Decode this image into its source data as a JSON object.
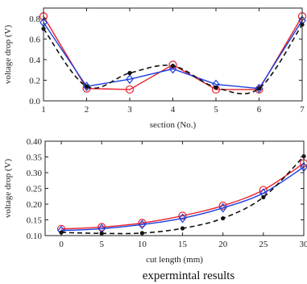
{
  "chart_data": [
    {
      "type": "line",
      "xlabel": "section (No.)",
      "ylabel": "voltage drop (V)",
      "xlim": [
        1,
        7
      ],
      "ylim": [
        0,
        0.9
      ],
      "xticks": [
        1,
        2,
        3,
        4,
        5,
        6,
        7
      ],
      "yticks": [
        "0.0",
        "0.2",
        "0.4",
        "0.6",
        "0.8"
      ],
      "ytick_values": [
        0,
        0.2,
        0.4,
        0.6,
        0.8
      ],
      "grid": false,
      "series": [
        {
          "marker": "circle-open",
          "line": "solid",
          "color": "#e8202a",
          "x": [
            1,
            2,
            3,
            4,
            5,
            6,
            7
          ],
          "y": [
            0.82,
            0.12,
            0.11,
            0.35,
            0.11,
            0.11,
            0.82
          ]
        },
        {
          "marker": "diamond-open",
          "line": "solid",
          "color": "#1a3fe0",
          "x": [
            1,
            2,
            3,
            4,
            5,
            6,
            7
          ],
          "y": [
            0.76,
            0.14,
            0.21,
            0.31,
            0.16,
            0.12,
            0.78
          ]
        },
        {
          "marker": "dot",
          "line": "dashed",
          "color": "#111111",
          "x": [
            1,
            2,
            3,
            4,
            5,
            6,
            7
          ],
          "y": [
            0.7,
            0.14,
            0.27,
            0.34,
            0.13,
            0.12,
            0.74
          ]
        }
      ]
    },
    {
      "type": "line",
      "xlabel": "cut length (mm)",
      "ylabel": "voltage drop (V)",
      "xlim": [
        -2,
        30
      ],
      "ylim": [
        0.1,
        0.4
      ],
      "xticks": [
        0,
        5,
        10,
        15,
        20,
        25,
        30
      ],
      "yticks": [
        "0.10",
        "0.15",
        "0.20",
        "0.25",
        "0.30",
        "0.35",
        "0.40"
      ],
      "ytick_values": [
        0.1,
        0.15,
        0.2,
        0.25,
        0.3,
        0.35,
        0.4
      ],
      "grid": false,
      "series": [
        {
          "marker": "circle-open",
          "line": "solid",
          "color": "#e8202a",
          "x": [
            0,
            5,
            10,
            15,
            20,
            25,
            30
          ],
          "y": [
            0.121,
            0.127,
            0.14,
            0.163,
            0.195,
            0.245,
            0.33
          ]
        },
        {
          "marker": "diamond-open",
          "line": "solid",
          "color": "#1a3fe0",
          "x": [
            0,
            5,
            10,
            15,
            20,
            25,
            30
          ],
          "y": [
            0.116,
            0.122,
            0.135,
            0.155,
            0.188,
            0.235,
            0.318
          ]
        },
        {
          "marker": "dot",
          "line": "dashed",
          "color": "#111111",
          "x": [
            0,
            5,
            10,
            15,
            20,
            25,
            30
          ],
          "y": [
            0.11,
            0.107,
            0.108,
            0.123,
            0.155,
            0.222,
            0.352
          ]
        }
      ]
    }
  ],
  "caption": "expermintal results"
}
